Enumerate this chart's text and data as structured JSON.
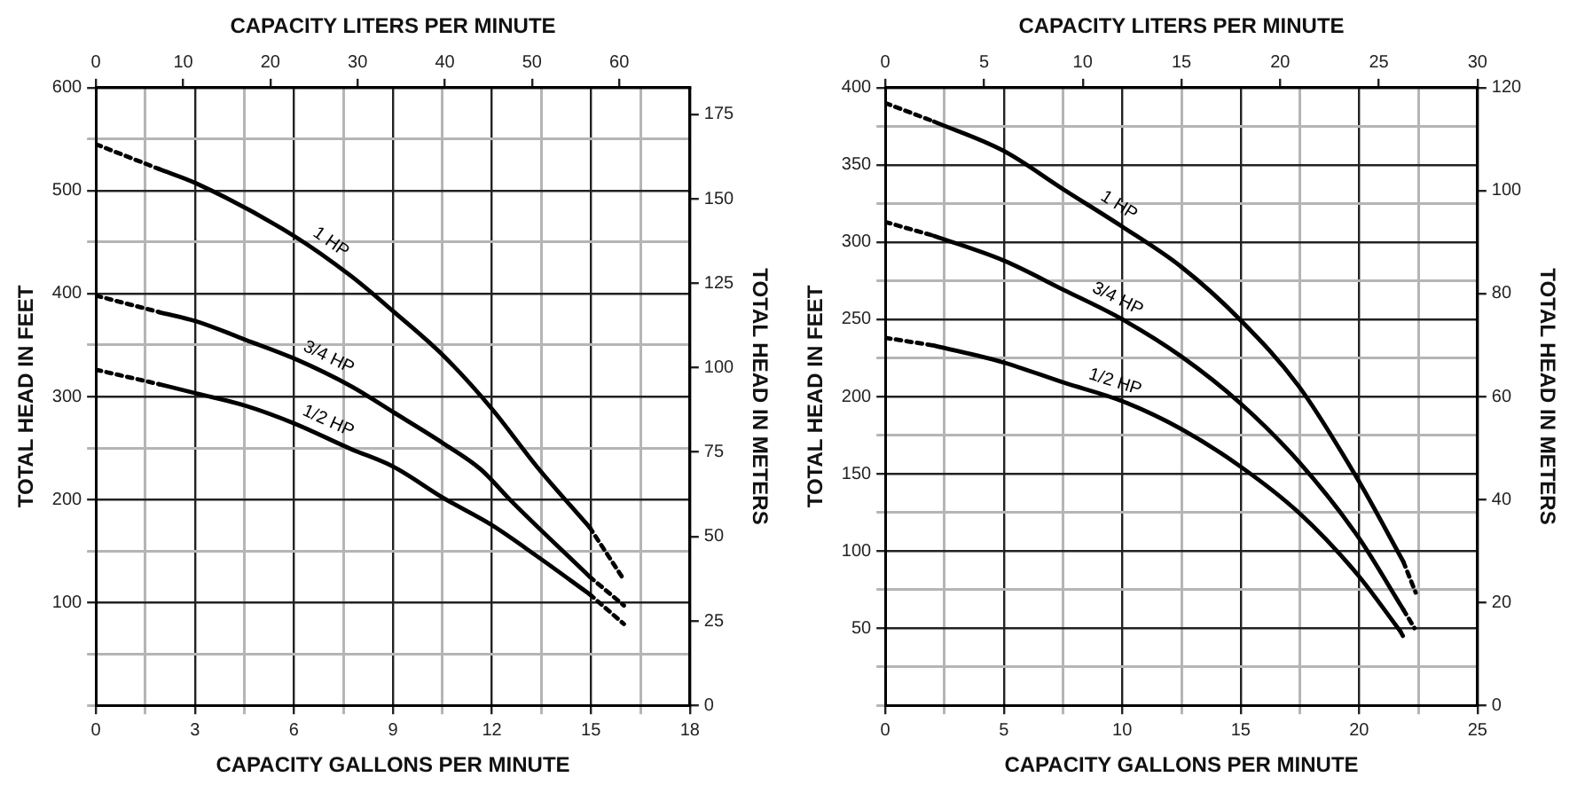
{
  "chart_data": [
    {
      "type": "line",
      "xlabel": "CAPACITY GALLONS PER MINUTE",
      "x2label": "CAPACITY LITERS PER MINUTE",
      "ylabel": "TOTAL HEAD IN FEET",
      "y2label": "TOTAL HEAD IN METERS",
      "xlim": [
        0,
        18
      ],
      "xticks": [
        0,
        {
          "value": 1.5,
          "label": null
        },
        3,
        {
          "value": 4.5,
          "label": null
        },
        6,
        {
          "value": 7.5,
          "label": null
        },
        9,
        {
          "value": 10.5,
          "label": null
        },
        12,
        {
          "value": 13.5,
          "label": null
        },
        15,
        {
          "value": 16.5,
          "label": null
        },
        18
      ],
      "x2lim": [
        0,
        68.1
      ],
      "x2ticks": [
        0,
        10,
        20,
        30,
        40,
        50,
        60
      ],
      "ylim": [
        0,
        600
      ],
      "yticks": [
        {
          "value": 0,
          "label": null
        },
        {
          "value": 50,
          "label": null
        },
        100,
        {
          "value": 150,
          "label": null
        },
        200,
        {
          "value": 250,
          "label": null
        },
        300,
        {
          "value": 350,
          "label": null
        },
        400,
        {
          "value": 450,
          "label": null
        },
        500,
        {
          "value": 550,
          "label": null
        },
        600
      ],
      "y2lim": [
        0,
        182.9
      ],
      "y2ticks": [
        0,
        25,
        50,
        75,
        100,
        125,
        150,
        175
      ],
      "grid": true,
      "legend": false,
      "marker": "none",
      "series": [
        {
          "name": "1 HP",
          "color": "#000000",
          "line_style": "solid",
          "x": [
            1.91,
            3.04,
            6.0,
            7.73,
            9.0,
            10.55,
            12.0,
            13.36,
            14.96
          ],
          "values": [
            521,
            507,
            456,
            417,
            383,
            339,
            288,
            232,
            173
          ]
        },
        {
          "name": "3/4 HP",
          "color": "#000000",
          "line_style": "solid",
          "x": [
            1.91,
            3.04,
            4.54,
            6.0,
            7.73,
            9.0,
            10.55,
            11.67,
            12.6,
            14.96
          ],
          "values": [
            382,
            373,
            355,
            337,
            310,
            285,
            254,
            229,
            198,
            125
          ]
        },
        {
          "name": "1/2 HP",
          "color": "#000000",
          "line_style": "solid",
          "x": [
            1.91,
            3.04,
            4.54,
            6.0,
            7.73,
            9.0,
            10.55,
            12.0,
            13.36,
            14.96
          ],
          "values": [
            312,
            303,
            291,
            274,
            249,
            232,
            201,
            175,
            145,
            108
          ]
        },
        {
          "color": "#000000",
          "line_style": "dotted",
          "x": [
            0,
            1.91,
            8,
            14.96,
            16.0
          ],
          "values": [
            545,
            521,
            null,
            173,
            122
          ]
        },
        {
          "color": "#000000",
          "line_style": "dotted",
          "x": [
            0,
            1.91,
            8,
            14.96,
            16.0
          ],
          "values": [
            398,
            382,
            null,
            125,
            97
          ]
        },
        {
          "color": "#000000",
          "line_style": "dotted",
          "x": [
            0,
            1.91,
            8,
            14.96,
            16.0
          ],
          "values": [
            326,
            312,
            null,
            108,
            79
          ]
        }
      ]
    },
    {
      "type": "line",
      "xlabel": "CAPACITY GALLONS PER MINUTE",
      "x2label": "CAPACITY LITERS PER MINUTE",
      "ylabel": "TOTAL HEAD IN FEET",
      "y2label": "TOTAL HEAD IN METERS",
      "xlim": [
        0,
        25
      ],
      "xticks": [
        0,
        {
          "value": 2.5,
          "label": null
        },
        5,
        {
          "value": 7.5,
          "label": null
        },
        10,
        {
          "value": 12.5,
          "label": null
        },
        15,
        {
          "value": 17.5,
          "label": null
        },
        20,
        {
          "value": 22.5,
          "label": null
        },
        25
      ],
      "x2lim": [
        0,
        30
      ],
      "x2ticks": [
        0,
        5,
        10,
        15,
        20,
        25,
        30
      ],
      "ylim": [
        0,
        400
      ],
      "yticks": [
        {
          "value": 0,
          "label": null
        },
        {
          "value": 25,
          "label": null
        },
        50,
        {
          "value": 75,
          "label": null
        },
        100,
        {
          "value": 125,
          "label": null
        },
        150,
        {
          "value": 175,
          "label": null
        },
        200,
        {
          "value": 225,
          "label": null
        },
        250,
        {
          "value": 275,
          "label": null
        },
        300,
        {
          "value": 325,
          "label": null
        },
        350,
        {
          "value": 375,
          "label": null
        },
        400
      ],
      "y2lim": [
        0,
        120
      ],
      "y2ticks": [
        0,
        20,
        40,
        60,
        80,
        100,
        120
      ],
      "grid": true,
      "legend": false,
      "marker": "none",
      "series": [
        {
          "name": "1 HP",
          "color": "#000000",
          "line_style": "solid",
          "x": [
            2.06,
            5.0,
            7.53,
            10.0,
            12.49,
            14.96,
            17.44,
            19.92,
            21.87
          ],
          "values": [
            378,
            359,
            334,
            310,
            284,
            250,
            207,
            147,
            93
          ]
        },
        {
          "name": "3/4 HP",
          "color": "#000000",
          "line_style": "solid",
          "x": [
            2.06,
            5.0,
            7.53,
            10.0,
            12.49,
            14.96,
            17.44,
            19.92,
            21.87
          ],
          "values": [
            304,
            288,
            269,
            250,
            226,
            196,
            158,
            110,
            62
          ]
        },
        {
          "name": "1/2 HP",
          "color": "#000000",
          "line_style": "solid",
          "x": [
            2.06,
            5.0,
            7.53,
            10.0,
            12.49,
            14.96,
            17.44,
            19.92,
            21.74
          ],
          "values": [
            233,
            222,
            209,
            197,
            179,
            155,
            125,
            85,
            48
          ]
        },
        {
          "color": "#000000",
          "line_style": "dotted",
          "x": [
            0,
            2.06,
            10,
            21.87,
            22.39
          ],
          "values": [
            390,
            378,
            null,
            93,
            73
          ]
        },
        {
          "color": "#000000",
          "line_style": "dotted",
          "x": [
            0,
            2.06,
            10,
            21.87,
            22.34
          ],
          "values": [
            313,
            304,
            null,
            62,
            50
          ]
        },
        {
          "color": "#000000",
          "line_style": "dotted",
          "x": [
            0,
            2.06,
            10,
            21.74,
            21.92
          ],
          "values": [
            238,
            233,
            null,
            48,
            43
          ]
        }
      ]
    }
  ]
}
